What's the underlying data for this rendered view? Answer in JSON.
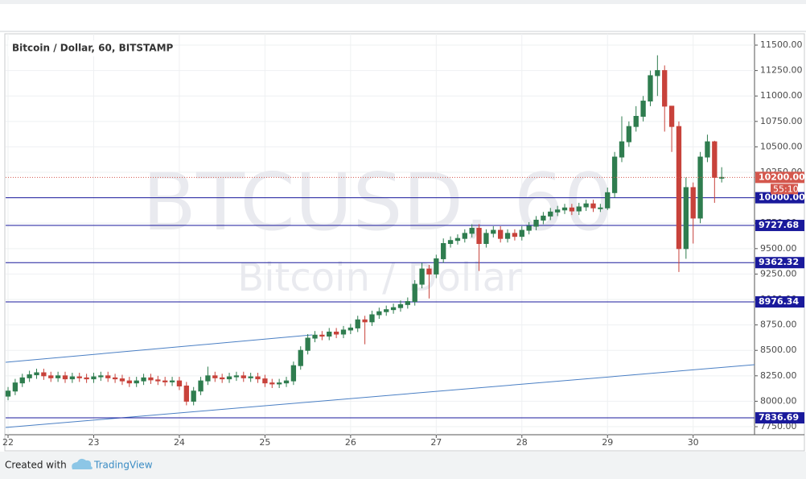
{
  "chart_data": {
    "type": "candlestick",
    "title": "Bitcoin / Dollar, 60, BITSTAMP",
    "watermark": [
      "BTCUSD, 60",
      "Bitcoin / Dollar"
    ],
    "up_color": "#2f7d4f",
    "down_color": "#c8423b",
    "open": [
      8050,
      8100,
      8180,
      8230,
      8260,
      8280,
      8250,
      8230,
      8250,
      8220,
      8240,
      8230,
      8220,
      8240,
      8250,
      8230,
      8220,
      8200,
      8180,
      8200,
      8230,
      8210,
      8200,
      8190,
      8200,
      8150,
      8000,
      8100,
      8200,
      8250,
      8230,
      8220,
      8240,
      8250,
      8230,
      8240,
      8220,
      8180,
      8170,
      8180,
      8200,
      8350,
      8500,
      8620,
      8650,
      8640,
      8680,
      8660,
      8700,
      8720,
      8800,
      8780,
      8850,
      8880,
      8900,
      8920,
      8950,
      8980,
      9150,
      9300,
      9250,
      9400,
      9550,
      9580,
      9600,
      9650,
      9700,
      9550,
      9650,
      9680,
      9600,
      9650,
      9620,
      9680,
      9720,
      9780,
      9820,
      9860,
      9880,
      9900,
      9870,
      9910,
      9940,
      9900,
      9900,
      10050,
      10400,
      10550,
      10700,
      10800,
      10950,
      11200,
      11250,
      10900,
      10700,
      9500,
      10100,
      9800,
      10400,
      10550,
      10200
    ],
    "high": [
      8140,
      8220,
      8270,
      8300,
      8320,
      8320,
      8290,
      8290,
      8290,
      8280,
      8280,
      8270,
      8280,
      8290,
      8290,
      8270,
      8260,
      8240,
      8240,
      8270,
      8270,
      8250,
      8240,
      8240,
      8240,
      8190,
      8140,
      8240,
      8340,
      8290,
      8270,
      8280,
      8290,
      8290,
      8280,
      8280,
      8260,
      8220,
      8220,
      8240,
      8390,
      8540,
      8660,
      8690,
      8690,
      8720,
      8720,
      8740,
      8760,
      8840,
      8840,
      8890,
      8920,
      8940,
      8960,
      8990,
      9020,
      9190,
      9360,
      9340,
      9440,
      9600,
      9620,
      9640,
      9690,
      9740,
      9740,
      9690,
      9720,
      9720,
      9690,
      9690,
      9720,
      9760,
      9820,
      9860,
      9900,
      9920,
      9940,
      9940,
      9950,
      9980,
      9980,
      9940,
      10100,
      10450,
      10800,
      10750,
      10900,
      11000,
      11250,
      11400,
      11300,
      10900,
      10750,
      10200,
      10150,
      10450,
      10620,
      10560,
      10300
    ],
    "low": [
      8010,
      8060,
      8140,
      8190,
      8220,
      8210,
      8190,
      8190,
      8180,
      8180,
      8190,
      8180,
      8180,
      8200,
      8190,
      8180,
      8160,
      8140,
      8140,
      8160,
      8170,
      8160,
      8150,
      8150,
      8110,
      7960,
      7960,
      8060,
      8160,
      8190,
      8180,
      8180,
      8200,
      8190,
      8190,
      8180,
      8140,
      8130,
      8130,
      8140,
      8160,
      8310,
      8460,
      8580,
      8600,
      8600,
      8620,
      8620,
      8660,
      8680,
      8560,
      8740,
      8810,
      8840,
      8860,
      8880,
      8910,
      8940,
      9110,
      9010,
      9210,
      9360,
      9510,
      9540,
      9560,
      9610,
      9280,
      9510,
      9610,
      9560,
      9560,
      9580,
      9580,
      9640,
      9680,
      9740,
      9780,
      9820,
      9840,
      9830,
      9830,
      9870,
      9860,
      9860,
      9880,
      10000,
      10350,
      10500,
      10650,
      10750,
      10900,
      11000,
      10650,
      10450,
      9270,
      9400,
      9550,
      9750,
      10350,
      9950,
      10150
    ],
    "close": [
      8100,
      8180,
      8230,
      8260,
      8280,
      8250,
      8230,
      8250,
      8220,
      8240,
      8230,
      8220,
      8240,
      8250,
      8230,
      8220,
      8200,
      8180,
      8200,
      8230,
      8210,
      8200,
      8190,
      8200,
      8150,
      8000,
      8100,
      8200,
      8250,
      8230,
      8220,
      8240,
      8250,
      8230,
      8240,
      8220,
      8180,
      8170,
      8180,
      8200,
      8350,
      8500,
      8620,
      8650,
      8640,
      8680,
      8660,
      8700,
      8720,
      8800,
      8780,
      8850,
      8880,
      8900,
      8920,
      8950,
      8980,
      9150,
      9300,
      9250,
      9400,
      9550,
      9580,
      9600,
      9650,
      9700,
      9550,
      9650,
      9680,
      9600,
      9650,
      9620,
      9680,
      9720,
      9780,
      9820,
      9860,
      9880,
      9900,
      9870,
      9910,
      9940,
      9900,
      9900,
      10050,
      10400,
      10550,
      10700,
      10800,
      10950,
      11200,
      11250,
      10900,
      10700,
      9500,
      10100,
      9800,
      10400,
      10550,
      10200,
      10200
    ],
    "xlim": [
      -0.34,
      104.6
    ],
    "xticks": [
      {
        "value": 0,
        "label": "22"
      },
      {
        "value": 12,
        "label": "23"
      },
      {
        "value": 24,
        "label": "24"
      },
      {
        "value": 36,
        "label": "25"
      },
      {
        "value": 48,
        "label": "26"
      },
      {
        "value": 60,
        "label": "27"
      },
      {
        "value": 72,
        "label": "28"
      },
      {
        "value": 84,
        "label": "29"
      },
      {
        "value": 96,
        "label": "30"
      }
    ],
    "ylim": [
      7671,
      11611
    ],
    "yticks": [
      {
        "value": 7750,
        "label": "7750.00"
      },
      {
        "value": 8000,
        "label": "8000.00"
      },
      {
        "value": 8250,
        "label": "8250.00"
      },
      {
        "value": 8500,
        "label": "8500.00"
      },
      {
        "value": 8750,
        "label": "8750.00"
      },
      {
        "value": 9000,
        "label": "9000.00"
      },
      {
        "value": 9250,
        "label": "9250.00"
      },
      {
        "value": 9500,
        "label": "9500.00"
      },
      {
        "value": 9750,
        "label": "9750.00"
      },
      {
        "value": 10000,
        "label": "10000.00"
      },
      {
        "value": 10250,
        "label": "10250.00"
      },
      {
        "value": 10500,
        "label": "10500.00"
      },
      {
        "value": 10750,
        "label": "10750.00"
      },
      {
        "value": 11000,
        "label": "11000.00"
      },
      {
        "value": 11250,
        "label": "11250.00"
      },
      {
        "value": 11500,
        "label": "11500.00"
      }
    ],
    "grid": true,
    "levels": [
      {
        "value": 10000,
        "label": "10000.00"
      },
      {
        "value": 9727.68,
        "label": "9727.68"
      },
      {
        "value": 9362.32,
        "label": "9362.32"
      },
      {
        "value": 8976.34,
        "label": "8976.34"
      },
      {
        "value": 7836.69,
        "label": "7836.69"
      }
    ],
    "level_color": "#1a1a9c",
    "last_price": {
      "value": 10200,
      "label": "10200.00",
      "countdown": "55:10",
      "color": "#d4574d"
    },
    "trendlines": [
      {
        "x": [
          -0.34,
          42.6
        ],
        "y": [
          8383,
          8652
        ],
        "color": "#4a7fc4"
      },
      {
        "x": [
          -0.34,
          104.6
        ],
        "y": [
          7742,
          8359
        ],
        "color": "#4a7fc4"
      }
    ],
    "footer": {
      "text": "Created with",
      "brand": "TradingView"
    }
  }
}
